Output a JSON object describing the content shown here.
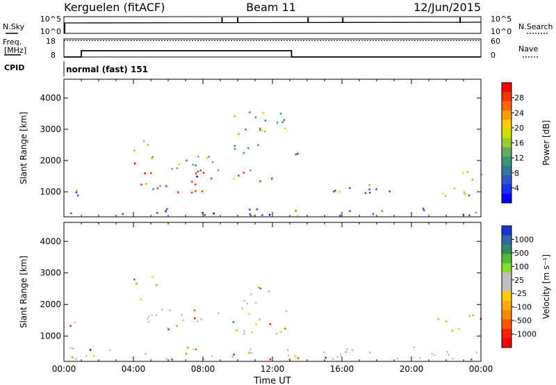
{
  "header": {
    "station": "Kerguelen (fitACF)",
    "beam": "Beam 11",
    "date": "12/Jun/2015"
  },
  "top_panel": {
    "left_label": "N.Sky",
    "right_label": "N.Search",
    "left_ticks": [
      "10^5",
      "10^0"
    ],
    "right_ticks": [
      "10^5",
      "10^0"
    ],
    "nsky_spikes_hours": [
      9.1,
      10.0,
      14.05,
      16.05,
      22.8
    ]
  },
  "freq_panel": {
    "left_label_1": "Freq.",
    "left_label_2": "[MHz]",
    "right_label": "Nave",
    "left_ticks": [
      "18",
      "8"
    ],
    "right_ticks": [
      "60",
      "0"
    ],
    "freq_steps": [
      {
        "start": 0,
        "end": 1,
        "mhz": 8
      },
      {
        "start": 1,
        "end": 13.1,
        "mhz": 12.5
      },
      {
        "start": 13.1,
        "end": 24,
        "mhz": 8
      }
    ],
    "nave_level": 55
  },
  "cpid": {
    "label": "CPID",
    "mode": "normal (fast) 151"
  },
  "chart_data": [
    {
      "type": "heatmap",
      "name": "power",
      "xlabel": "",
      "ylabel": "Slant Range [km]",
      "xlim": [
        0,
        24
      ],
      "ylim": [
        200,
        4600
      ],
      "yticks": [
        "4000",
        "3000",
        "2000",
        "1000"
      ],
      "colorbar": {
        "label": "Power [dB]",
        "ticks": [
          "28",
          "24",
          "20",
          "16",
          "12",
          "8",
          "4"
        ],
        "colors": [
          "#ff0000",
          "#ff3300",
          "#ff6600",
          "#ff9900",
          "#ffcc00",
          "#ccdd00",
          "#99cc33",
          "#66aa66",
          "#339977",
          "#337799",
          "#3355cc",
          "#1a33ee",
          "#0000ff"
        ]
      },
      "regions": [
        {
          "x0": 0.4,
          "x1": 1.0,
          "y0": 500,
          "y1": 1500,
          "color": "#ff6600"
        },
        {
          "x0": 0.2,
          "x1": 24,
          "y0": 250,
          "y1": 500,
          "color": "#3355cc"
        },
        {
          "x0": 3.8,
          "x1": 5.2,
          "y0": 1900,
          "y1": 2800,
          "color": "#99cc33"
        },
        {
          "x0": 4.0,
          "x1": 12.0,
          "y0": 1000,
          "y1": 1700,
          "color": "#ff3300"
        },
        {
          "x0": 6.0,
          "x1": 11.5,
          "y0": 1700,
          "y1": 2200,
          "color": "#66aa66"
        },
        {
          "x0": 9.5,
          "x1": 12.8,
          "y0": 2200,
          "y1": 3600,
          "color": "#339977"
        },
        {
          "x0": 13.0,
          "x1": 13.6,
          "y0": 1900,
          "y1": 2600,
          "color": "#99cc33"
        },
        {
          "x0": 21.5,
          "x1": 24,
          "y0": 900,
          "y1": 1700,
          "color": "#99cc33"
        },
        {
          "x0": 23.2,
          "x1": 24,
          "y0": 1400,
          "y1": 1700,
          "color": "#ff3300"
        },
        {
          "x0": 15.0,
          "x1": 20.5,
          "y0": 900,
          "y1": 1300,
          "color": "#3355cc"
        }
      ]
    },
    {
      "type": "heatmap",
      "name": "velocity",
      "xlabel": "Time UT",
      "ylabel": "Slant Range [km]",
      "xlim": [
        0,
        24
      ],
      "ylim": [
        200,
        4600
      ],
      "yticks": [
        "4000",
        "3000",
        "2000",
        "1000"
      ],
      "xticks": [
        "00:00",
        "04:00",
        "08:00",
        "12:00",
        "16:00",
        "20:00",
        "00:00"
      ],
      "colorbar": {
        "label": "Velocity [m s⁻¹]",
        "ticks": [
          "1000",
          "500",
          "100",
          "25",
          "-25",
          "-100",
          "-500",
          "-1000"
        ],
        "colors": [
          "#1a33cc",
          "#3366aa",
          "#338866",
          "#55bb33",
          "#88dd33",
          "#c0c0c0",
          "#c0c0c0",
          "#ffcc00",
          "#ffaa00",
          "#ff8800",
          "#ff5500",
          "#ff2200",
          "#ff0000"
        ]
      },
      "regions": [
        {
          "x0": 0.2,
          "x1": 24,
          "y0": 250,
          "y1": 700,
          "color": "#c0c0c0"
        },
        {
          "x0": 0.3,
          "x1": 1.0,
          "y0": 600,
          "y1": 1500,
          "color": "#c0c0c0"
        },
        {
          "x0": 3.8,
          "x1": 5.3,
          "y0": 2100,
          "y1": 2900,
          "color": "#ff8800"
        },
        {
          "x0": 4.5,
          "x1": 12.8,
          "y0": 1100,
          "y1": 1900,
          "color": "#c0c0c0"
        },
        {
          "x0": 9.5,
          "x1": 12.0,
          "y0": 1900,
          "y1": 2600,
          "color": "#c0c0c0"
        },
        {
          "x0": 21.5,
          "x1": 24,
          "y0": 1200,
          "y1": 1700,
          "color": "#88dd33"
        },
        {
          "x0": 23.2,
          "x1": 24,
          "y0": 1300,
          "y1": 1700,
          "color": "#ffaa00"
        }
      ]
    }
  ]
}
